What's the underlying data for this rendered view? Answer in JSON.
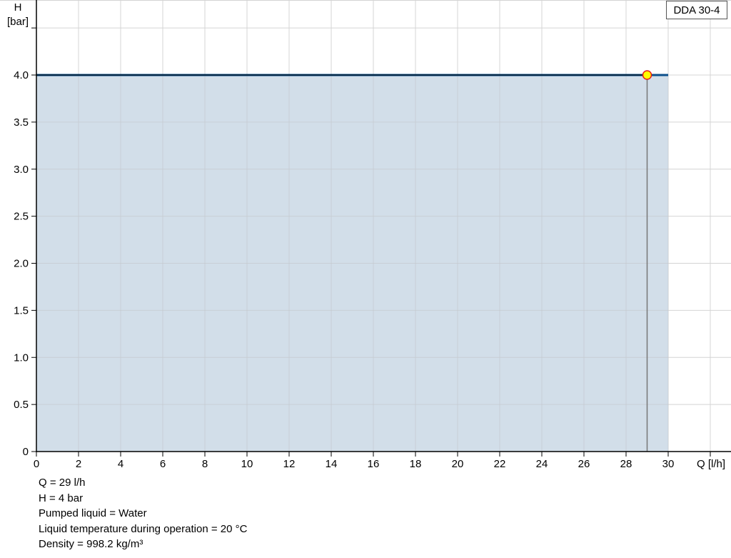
{
  "chart_data": {
    "type": "line",
    "title": "",
    "ylabel_line1": "H",
    "ylabel_line2": "[bar]",
    "xlabel": "Q [l/h]",
    "xlim": [
      0,
      32
    ],
    "ylim": [
      0,
      4.5
    ],
    "xticks": [
      0,
      2,
      4,
      6,
      8,
      10,
      12,
      14,
      16,
      18,
      20,
      22,
      24,
      26,
      28,
      30
    ],
    "yticks": [
      0,
      0.5,
      1.0,
      1.5,
      2.0,
      2.5,
      3.0,
      3.5,
      4.0
    ],
    "ytick_labels": [
      "0",
      "0.5",
      "1.0",
      "1.5",
      "2.0",
      "2.5",
      "3.0",
      "3.5",
      "4.0"
    ],
    "grid": true,
    "legend": {
      "text": "DDA 30-4",
      "placement": "top-right"
    },
    "series": [
      {
        "name": "DDA 30-4",
        "x": [
          0,
          30
        ],
        "y": [
          4,
          4
        ],
        "color": "#0b4f8a",
        "fill": "#d0dce8"
      }
    ],
    "operating_point": {
      "x": 29,
      "y": 4,
      "fill": "#ffff00",
      "stroke": "#e81c1c"
    }
  },
  "info": [
    "Q = 29 l/h",
    "H = 4 bar",
    "Pumped liquid = Water",
    "Liquid temperature during operation = 20 °C",
    "Density = 998.2 kg/m³"
  ]
}
